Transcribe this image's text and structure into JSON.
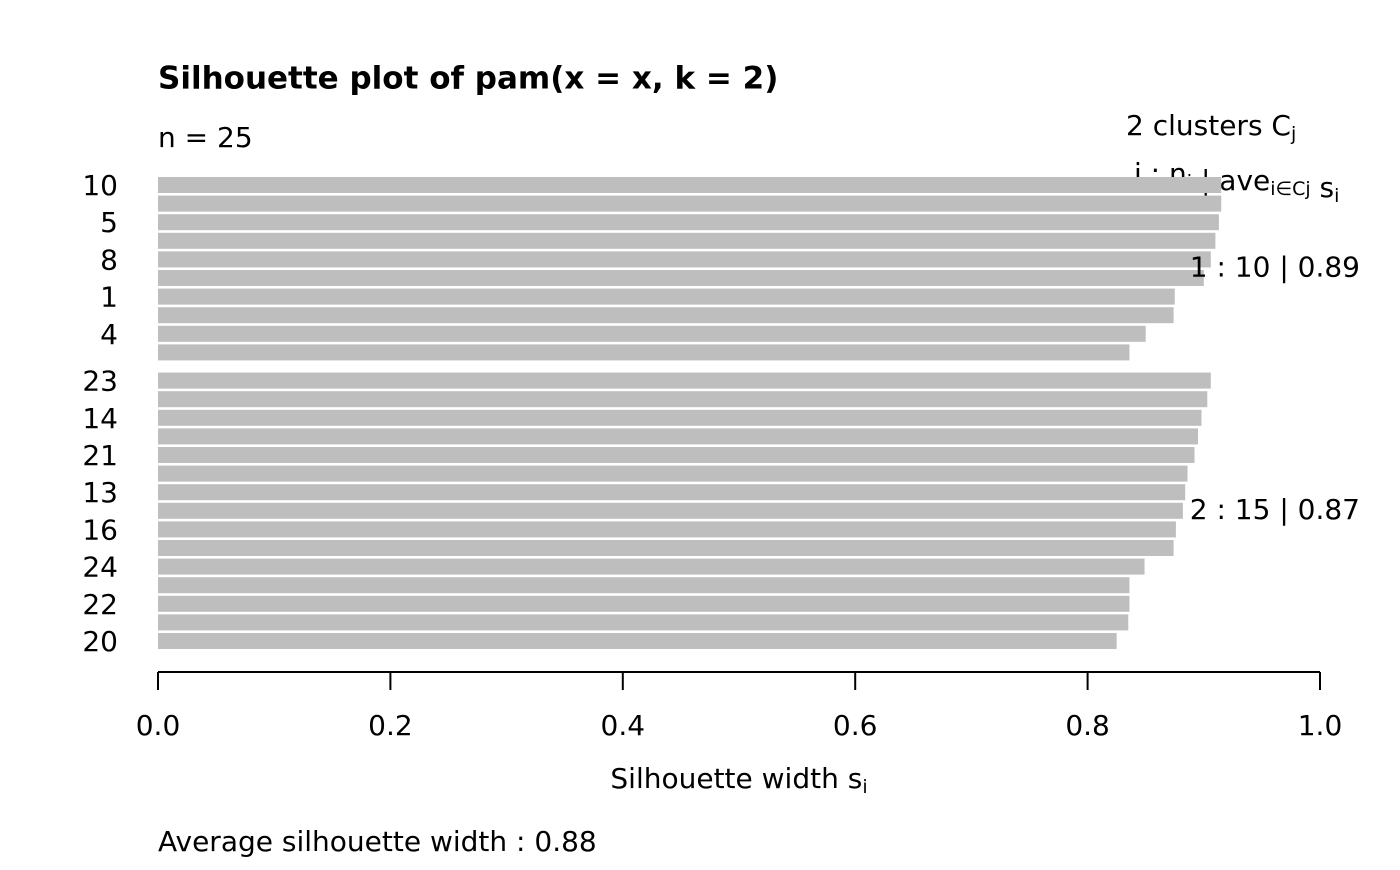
{
  "chart_data": {
    "type": "bar",
    "orientation": "horizontal",
    "title": "Silhouette plot of pam(x = x, k = 2)",
    "subtitle": "n = 25",
    "legend_header": {
      "text": "2  clusters  C",
      "sub": "j"
    },
    "legend_subheader": [
      {
        "text": "j :  n",
        "sub": "j"
      },
      {
        "text": " | ave",
        "sub": "i∈Cj"
      },
      {
        "text": "  s",
        "sub": "i"
      }
    ],
    "xlabel": {
      "text": "Silhouette width s",
      "sub": "i"
    },
    "footer": "Average silhouette width :  0.88",
    "color": "#bebebe",
    "clusters": [
      {
        "label": "1 :  10  |  0.89",
        "categories": [
          "10",
          null,
          "5",
          null,
          "8",
          null,
          "1",
          null,
          "4",
          null
        ],
        "values": [
          0.915,
          0.915,
          0.913,
          0.91,
          0.906,
          0.9,
          0.875,
          0.874,
          0.85,
          0.836
        ]
      },
      {
        "label": "2 :  15  |  0.87",
        "categories": [
          "23",
          null,
          "14",
          null,
          "21",
          null,
          "13",
          null,
          "16",
          null,
          "24",
          null,
          "22",
          null,
          "20"
        ],
        "values": [
          0.906,
          0.903,
          0.898,
          0.895,
          0.892,
          0.886,
          0.884,
          0.882,
          0.876,
          0.874,
          0.849,
          0.836,
          0.836,
          0.835,
          0.825
        ]
      }
    ],
    "xlim": [
      0,
      1
    ],
    "xticks": [
      {
        "value": 0,
        "label": "0.0"
      },
      0.2,
      0.4,
      0.6,
      0.8,
      {
        "value": 1,
        "label": "1.0"
      }
    ]
  }
}
